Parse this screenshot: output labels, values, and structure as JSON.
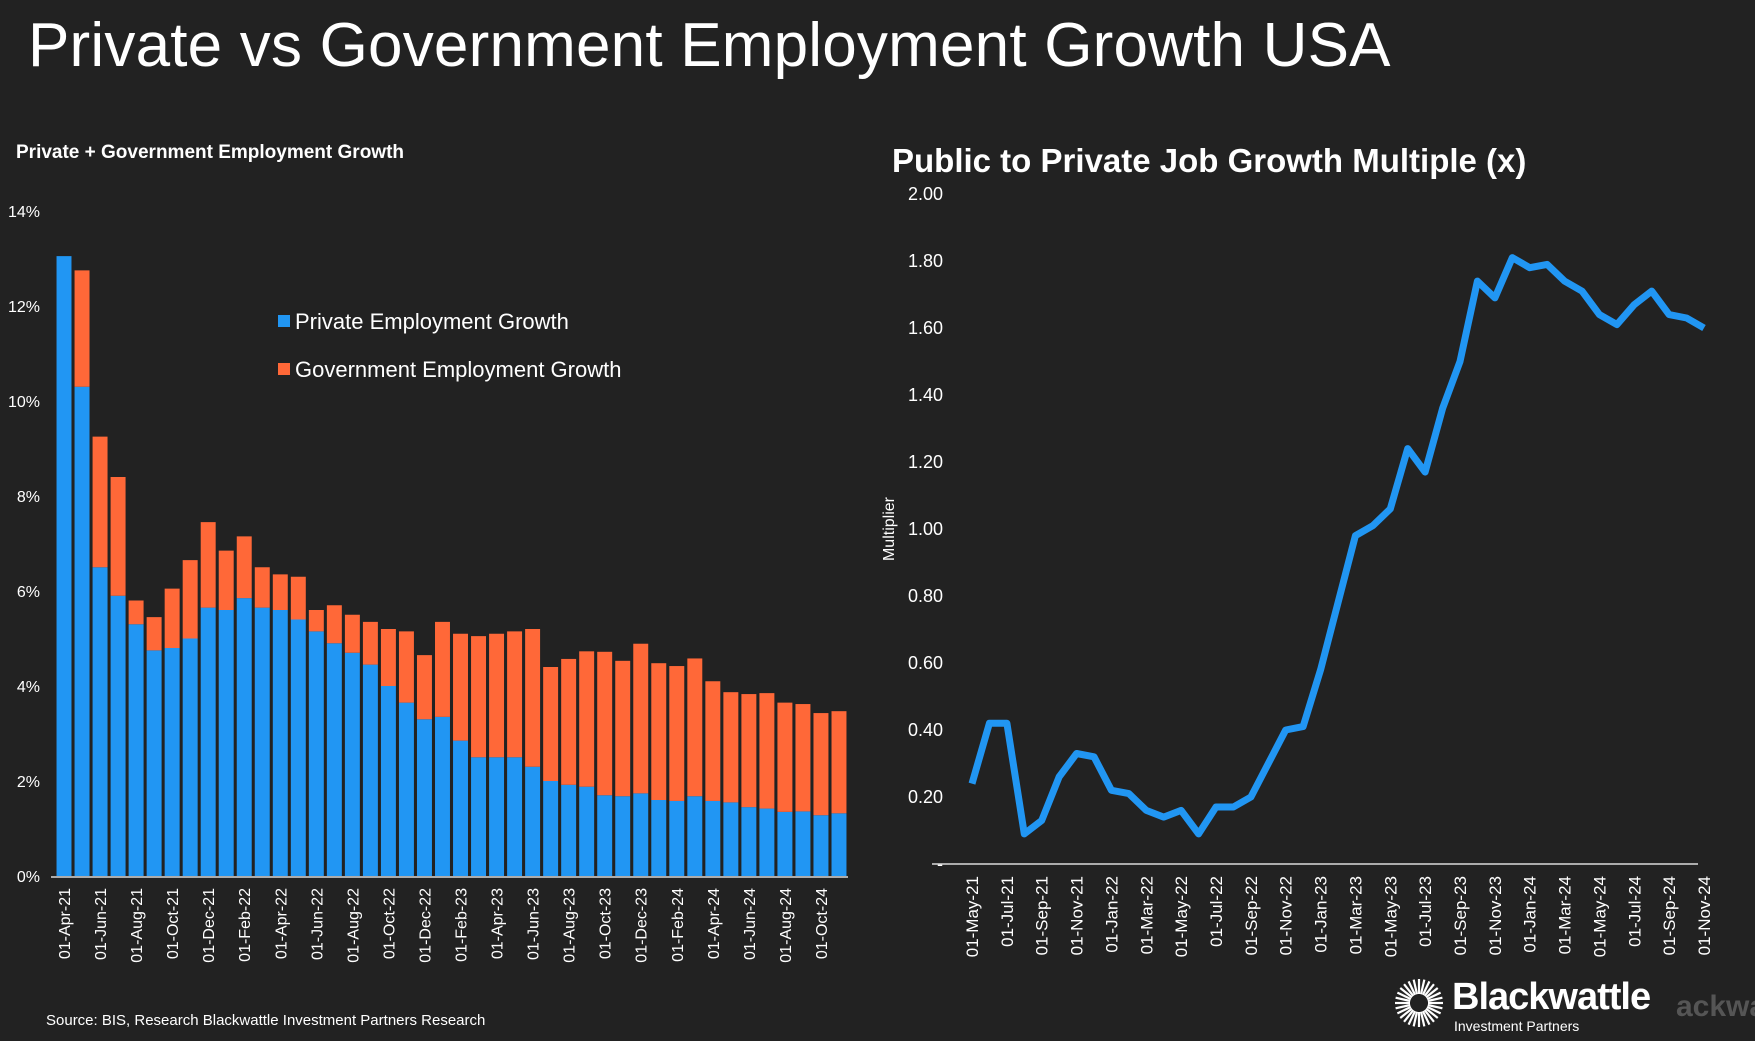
{
  "header": {
    "title": "Private vs Government Employment Growth USA"
  },
  "footer": {
    "source": "Source: BIS, Research Blackwattle Investment Partners Research"
  },
  "logo": {
    "name": "Blackwattle",
    "sub": "Investment Partners",
    "ghost": "ackwa"
  },
  "colors": {
    "private": "#2196F3",
    "government": "#FF6838",
    "line": "#2196F3",
    "background": "#222222"
  },
  "chart_data": [
    {
      "type": "bar",
      "stacked": true,
      "title": "Private + Government Employment Growth",
      "ylabel": "",
      "ylim": [
        0,
        14
      ],
      "yticks": [
        "0%",
        "2%",
        "4%",
        "6%",
        "8%",
        "10%",
        "12%",
        "14%"
      ],
      "legend": {
        "position": "top-center",
        "entries": [
          "Private Employment Growth",
          "Government Employment Growth"
        ]
      },
      "categories": [
        "01-Apr-21",
        "01-May-21",
        "01-Jun-21",
        "01-Jul-21",
        "01-Aug-21",
        "01-Sep-21",
        "01-Oct-21",
        "01-Nov-21",
        "01-Dec-21",
        "01-Jan-22",
        "01-Feb-22",
        "01-Mar-22",
        "01-Apr-22",
        "01-May-22",
        "01-Jun-22",
        "01-Jul-22",
        "01-Aug-22",
        "01-Sep-22",
        "01-Oct-22",
        "01-Nov-22",
        "01-Dec-22",
        "01-Jan-23",
        "01-Feb-23",
        "01-Mar-23",
        "01-Apr-23",
        "01-May-23",
        "01-Jun-23",
        "01-Jul-23",
        "01-Aug-23",
        "01-Sep-23",
        "01-Oct-23",
        "01-Nov-23",
        "01-Dec-23",
        "01-Jan-24",
        "01-Feb-24",
        "01-Mar-24",
        "01-Apr-24",
        "01-May-24",
        "01-Jun-24",
        "01-Jul-24",
        "01-Aug-24",
        "01-Sep-24",
        "01-Oct-24",
        "01-Nov-24"
      ],
      "tick_labels": [
        "01-Apr-21",
        "01-Jun-21",
        "01-Aug-21",
        "01-Oct-21",
        "01-Dec-21",
        "01-Feb-22",
        "01-Apr-22",
        "01-Jun-22",
        "01-Aug-22",
        "01-Oct-22",
        "01-Dec-22",
        "01-Feb-23",
        "01-Apr-23",
        "01-Jun-23",
        "01-Aug-23",
        "01-Oct-23",
        "01-Dec-23",
        "01-Feb-24",
        "01-Apr-24",
        "01-Jun-24",
        "01-Aug-24",
        "01-Oct-24"
      ],
      "series": [
        {
          "name": "Private Employment Growth",
          "values": [
            13.05,
            10.3,
            6.5,
            5.9,
            5.3,
            4.75,
            4.8,
            5.0,
            5.65,
            5.6,
            5.85,
            5.65,
            5.6,
            5.4,
            5.15,
            4.9,
            4.7,
            4.45,
            4.0,
            3.65,
            3.3,
            3.35,
            2.85,
            2.5,
            2.5,
            2.5,
            2.3,
            2.0,
            1.92,
            1.88,
            1.7,
            1.68,
            1.74,
            1.6,
            1.58,
            1.68,
            1.58,
            1.55,
            1.45,
            1.42,
            1.35,
            1.36,
            1.28,
            1.32
          ]
        },
        {
          "name": "Government Employment Growth",
          "values": [
            0.0,
            2.45,
            2.75,
            2.5,
            0.5,
            0.7,
            1.25,
            1.65,
            1.8,
            1.25,
            1.3,
            0.85,
            0.75,
            0.9,
            0.45,
            0.8,
            0.8,
            0.9,
            1.2,
            1.5,
            1.35,
            2.0,
            2.25,
            2.55,
            2.6,
            2.65,
            2.9,
            2.4,
            2.65,
            2.85,
            3.02,
            2.85,
            3.15,
            2.88,
            2.84,
            2.9,
            2.52,
            2.32,
            2.38,
            2.43,
            2.3,
            2.26,
            2.15,
            2.15
          ]
        }
      ]
    },
    {
      "type": "line",
      "title": "Public to Private Job Growth Multiple (x)",
      "ylabel": "Multiplier",
      "ylim": [
        0,
        2.0
      ],
      "yticks": [
        "-",
        "0.20",
        "0.40",
        "0.60",
        "0.80",
        "1.00",
        "1.20",
        "1.40",
        "1.60",
        "1.80",
        "2.00"
      ],
      "x": [
        "01-May-21",
        "01-Jun-21",
        "01-Jul-21",
        "01-Aug-21",
        "01-Sep-21",
        "01-Oct-21",
        "01-Nov-21",
        "01-Dec-21",
        "01-Jan-22",
        "01-Feb-22",
        "01-Mar-22",
        "01-Apr-22",
        "01-May-22",
        "01-Jun-22",
        "01-Jul-22",
        "01-Aug-22",
        "01-Sep-22",
        "01-Oct-22",
        "01-Nov-22",
        "01-Dec-22",
        "01-Jan-23",
        "01-Feb-23",
        "01-Mar-23",
        "01-Apr-23",
        "01-May-23",
        "01-Jun-23",
        "01-Jul-23",
        "01-Aug-23",
        "01-Sep-23",
        "01-Oct-23",
        "01-Nov-23",
        "01-Dec-23",
        "01-Jan-24",
        "01-Feb-24",
        "01-Mar-24",
        "01-Apr-24",
        "01-May-24",
        "01-Jun-24",
        "01-Jul-24",
        "01-Aug-24",
        "01-Sep-24",
        "01-Oct-24",
        "01-Nov-24"
      ],
      "tick_labels": [
        "01-May-21",
        "01-Jul-21",
        "01-Sep-21",
        "01-Nov-21",
        "01-Jan-22",
        "01-Mar-22",
        "01-May-22",
        "01-Jul-22",
        "01-Sep-22",
        "01-Nov-22",
        "01-Jan-23",
        "01-Mar-23",
        "01-May-23",
        "01-Jul-23",
        "01-Sep-23",
        "01-Nov-23",
        "01-Jan-24",
        "01-Mar-24",
        "01-May-24",
        "01-Jul-24",
        "01-Sep-24",
        "01-Nov-24"
      ],
      "series": [
        {
          "name": "Multiplier",
          "values": [
            0.24,
            0.42,
            0.42,
            0.09,
            0.13,
            0.26,
            0.33,
            0.32,
            0.22,
            0.21,
            0.16,
            0.14,
            0.16,
            0.09,
            0.17,
            0.17,
            0.2,
            0.3,
            0.4,
            0.41,
            0.58,
            0.78,
            0.98,
            1.01,
            1.06,
            1.24,
            1.17,
            1.36,
            1.5,
            1.74,
            1.69,
            1.81,
            1.78,
            1.79,
            1.74,
            1.71,
            1.64,
            1.61,
            1.67,
            1.71,
            1.64,
            1.63,
            1.6
          ]
        }
      ]
    }
  ]
}
